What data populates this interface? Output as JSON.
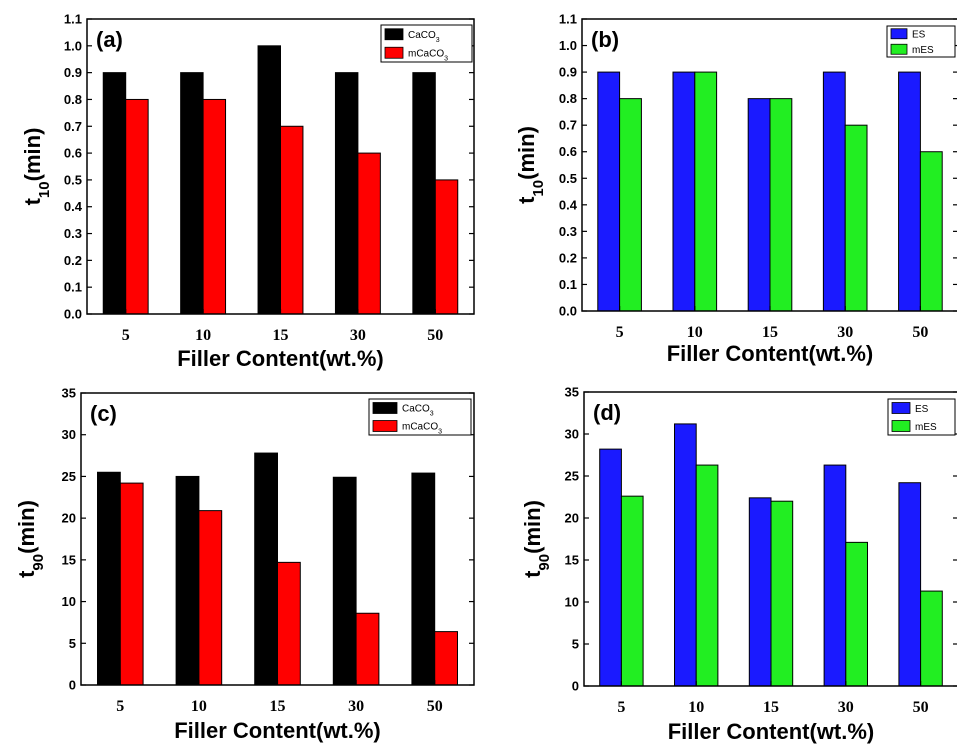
{
  "chart_data": [
    {
      "type": "bar",
      "panel_label": "(a)",
      "categories": [
        "5",
        "10",
        "15",
        "30",
        "50"
      ],
      "series": [
        {
          "name": "CaCO3",
          "color": "#000000",
          "values": [
            0.9,
            0.9,
            1.0,
            0.9,
            0.9
          ]
        },
        {
          "name": "mCaCO3",
          "color": "#ff0000",
          "values": [
            0.8,
            0.8,
            0.7,
            0.6,
            0.5
          ]
        }
      ],
      "xlabel": "Filler Content(wt.%)",
      "ylabel": {
        "base": "t",
        "sub": "10",
        "rest": "(min)"
      },
      "ylim": [
        0,
        1.1
      ],
      "yticks": [
        "0.0",
        "0.1",
        "0.2",
        "0.3",
        "0.4",
        "0.5",
        "0.6",
        "0.7",
        "0.8",
        "0.9",
        "1.0",
        "1.1"
      ],
      "grid": false,
      "legend_position": "top-right"
    },
    {
      "type": "bar",
      "panel_label": "(b)",
      "categories": [
        "5",
        "10",
        "15",
        "30",
        "50"
      ],
      "series": [
        {
          "name": "ES",
          "color": "#1a1aff",
          "values": [
            0.9,
            0.9,
            0.8,
            0.9,
            0.9
          ]
        },
        {
          "name": "mES",
          "color": "#22ee22",
          "values": [
            0.8,
            0.9,
            0.8,
            0.7,
            0.6
          ]
        }
      ],
      "xlabel": "Filler Content(wt.%)",
      "ylabel": {
        "base": "t",
        "sub": "10",
        "rest": "(min)"
      },
      "ylim": [
        0,
        1.1
      ],
      "yticks": [
        "0.0",
        "0.1",
        "0.2",
        "0.3",
        "0.4",
        "0.5",
        "0.6",
        "0.7",
        "0.8",
        "0.9",
        "1.0",
        "1.1"
      ],
      "grid": false,
      "legend_position": "top-right"
    },
    {
      "type": "bar",
      "panel_label": "(c)",
      "categories": [
        "5",
        "10",
        "15",
        "30",
        "50"
      ],
      "series": [
        {
          "name": "CaCO3",
          "color": "#000000",
          "values": [
            25.5,
            25.0,
            27.8,
            24.9,
            25.4
          ]
        },
        {
          "name": "mCaCO3",
          "color": "#ff0000",
          "values": [
            24.2,
            20.9,
            14.7,
            8.6,
            6.4
          ]
        }
      ],
      "xlabel": "Filler Content(wt.%)",
      "ylabel": {
        "base": "t",
        "sub": "90",
        "rest": "(min)"
      },
      "ylim": [
        0,
        35
      ],
      "yticks": [
        "0",
        "5",
        "10",
        "15",
        "20",
        "25",
        "30",
        "35"
      ],
      "grid": false,
      "legend_position": "top-right"
    },
    {
      "type": "bar",
      "panel_label": "(d)",
      "categories": [
        "5",
        "10",
        "15",
        "30",
        "50"
      ],
      "series": [
        {
          "name": "ES",
          "color": "#1a1aff",
          "values": [
            28.2,
            31.2,
            22.4,
            26.3,
            24.2
          ]
        },
        {
          "name": "mES",
          "color": "#22ee22",
          "values": [
            22.6,
            26.3,
            22.0,
            17.1,
            11.3
          ]
        }
      ],
      "xlabel": "Filler Content(wt.%)",
      "ylabel": {
        "base": "t",
        "sub": "90",
        "rest": "(min)"
      },
      "ylim": [
        0,
        35
      ],
      "yticks": [
        "0",
        "5",
        "10",
        "15",
        "20",
        "25",
        "30",
        "35"
      ],
      "grid": false,
      "legend_position": "top-right"
    }
  ]
}
